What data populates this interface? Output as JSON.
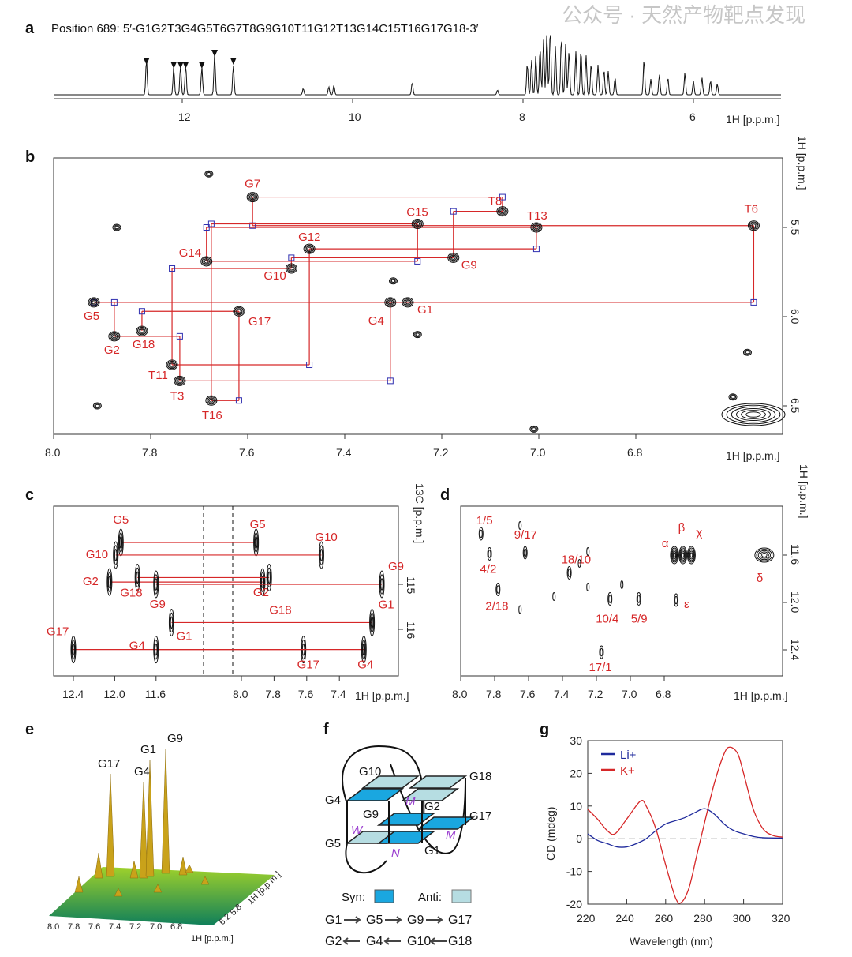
{
  "panels": {
    "a": {
      "label": "a",
      "title": "Position 689: 5′-G1G2T3G4G5T6G7T8G9G10T11G12T13G14C15T16G17G18-3′",
      "xticks": [
        "12",
        "10",
        "8",
        "6"
      ],
      "xlabel": "1H [p.p.m.]",
      "marked_peaks_ppm": [
        12.42,
        12.1,
        12.02,
        11.96,
        11.77,
        11.62,
        11.4
      ]
    },
    "b": {
      "label": "b",
      "xlabel": "1H [p.p.m.]",
      "ylabel": "1H [p.p.m.]",
      "xticks": [
        "8.0",
        "7.8",
        "7.6",
        "7.4",
        "7.2",
        "7.0",
        "6.8"
      ],
      "yticks": [
        "5.5",
        "6.0",
        "6.5"
      ],
      "assignments": [
        {
          "name": "G7",
          "h": 7.59,
          "y": 5.33
        },
        {
          "name": "C15",
          "h": 7.25,
          "y": 5.48
        },
        {
          "name": "T8",
          "h": 7.075,
          "y": 5.41
        },
        {
          "name": "T13",
          "h": 7.005,
          "y": 5.5
        },
        {
          "name": "T6",
          "h": 6.557,
          "y": 5.49
        },
        {
          "name": "G12",
          "h": 7.473,
          "y": 5.62
        },
        {
          "name": "G14",
          "h": 7.685,
          "y": 5.69
        },
        {
          "name": "G10",
          "h": 7.51,
          "y": 5.73
        },
        {
          "name": "G9",
          "h": 7.176,
          "y": 5.67
        },
        {
          "name": "G5",
          "h": 7.917,
          "y": 5.92
        },
        {
          "name": "G1",
          "h": 7.27,
          "y": 5.92
        },
        {
          "name": "G4",
          "h": 7.306,
          "y": 5.92
        },
        {
          "name": "G17",
          "h": 7.618,
          "y": 5.97
        },
        {
          "name": "G2",
          "h": 7.875,
          "y": 6.11
        },
        {
          "name": "G18",
          "h": 7.818,
          "y": 6.08
        },
        {
          "name": "T11",
          "h": 7.756,
          "y": 6.27
        },
        {
          "name": "T3",
          "h": 7.74,
          "y": 6.36
        },
        {
          "name": "T16",
          "h": 7.675,
          "y": 6.47
        }
      ]
    },
    "c": {
      "label": "c",
      "xlabel": "1H [p.p.m.]",
      "ylabel": "13C [p.p.m.]",
      "xticks_left": [
        "12.4",
        "12.0",
        "11.6"
      ],
      "xticks_right": [
        "8.0",
        "7.8",
        "7.6",
        "7.4"
      ],
      "yticks": [
        "115",
        "116"
      ],
      "pairs": [
        {
          "name": "G5",
          "h1": 11.94,
          "h8": 7.91,
          "c": 114.07
        },
        {
          "name": "G10",
          "h1": 11.99,
          "h8": 7.51,
          "c": 114.35
        },
        {
          "name": "G2",
          "h1": 12.05,
          "h8": 7.87,
          "c": 114.95
        },
        {
          "name": "G18",
          "h1": 11.78,
          "h8": 7.83,
          "c": 114.85
        },
        {
          "name": "G9",
          "h1": 11.6,
          "h8": 7.14,
          "c": 115.0
        },
        {
          "name": "G1",
          "h1": 11.45,
          "h8": 7.2,
          "c": 115.85
        },
        {
          "name": "G17",
          "h1": 12.4,
          "h8": 7.62,
          "c": 116.45
        },
        {
          "name": "G4",
          "h1": 11.6,
          "h8": 7.25,
          "c": 116.45
        }
      ]
    },
    "d": {
      "label": "d",
      "xlabel": "1H [p.p.m.]",
      "ylabel": "1H [p.p.m.]",
      "xticks": [
        "8.0",
        "7.8",
        "7.6",
        "7.4",
        "7.2",
        "7.0",
        "6.8"
      ],
      "yticks": [
        "11.6",
        "12.0",
        "12.4"
      ],
      "peaks": [
        {
          "name": "1/5",
          "h": 7.88,
          "y": 11.42
        },
        {
          "name": "9/17",
          "h": 7.62,
          "y": 11.58
        },
        {
          "name": "18/10",
          "h": 7.36,
          "y": 11.75
        },
        {
          "name": "4/2",
          "h": 7.83,
          "y": 11.59
        },
        {
          "name": "2/18",
          "h": 7.78,
          "y": 11.89
        },
        {
          "name": "10/4",
          "h": 7.12,
          "y": 11.97
        },
        {
          "name": "5/9",
          "h": 6.95,
          "y": 11.97
        },
        {
          "name": "17/1",
          "h": 7.17,
          "y": 12.42
        },
        {
          "name": "α",
          "h": 6.74,
          "y": 11.6
        },
        {
          "name": "β",
          "h": 6.69,
          "y": 11.6
        },
        {
          "name": "χ",
          "h": 6.64,
          "y": 11.6
        },
        {
          "name": "ε",
          "h": 6.73,
          "y": 11.98
        },
        {
          "name": "δ",
          "h": 6.21,
          "y": 11.6
        }
      ]
    },
    "e": {
      "label": "e",
      "peaks": [
        "G17",
        "G4",
        "G1",
        "G9"
      ],
      "xticks": [
        "8.0",
        "7.8",
        "7.6",
        "7.4",
        "7.2",
        "7.0",
        "6.8"
      ],
      "yticks": [
        "6.2",
        "5.8"
      ],
      "xlabel": "1H [p.p.m.]",
      "ylabel": "1H [p.p.m.]"
    },
    "f": {
      "label": "f",
      "bases": [
        "G10",
        "G18",
        "G4",
        "G2",
        "G9",
        "G17",
        "G5",
        "G1"
      ],
      "loops": [
        "W",
        "M",
        "M",
        "N"
      ],
      "legend": {
        "syn": "Syn:",
        "anti": "Anti:"
      },
      "syn_color": "#1aa7e0",
      "anti_color": "#b6dde2",
      "row1": [
        "G1",
        "G5",
        "G9",
        "G17"
      ],
      "row2": [
        "G2",
        "G4",
        "G10",
        "G18"
      ]
    },
    "g": {
      "label": "g"
    }
  },
  "chart_data": {
    "type": "line",
    "xlabel": "Wavelength (nm)",
    "ylabel": "CD (mdeg)",
    "xlim": [
      220,
      320
    ],
    "ylim": [
      -20,
      30
    ],
    "xticks": [
      220,
      240,
      260,
      280,
      300,
      320
    ],
    "yticks": [
      -20,
      -10,
      0,
      10,
      20,
      30
    ],
    "legend_position": "top-left",
    "series": [
      {
        "name": "Li+",
        "color": "#1f2a9c",
        "x": [
          220,
          225,
          230,
          235,
          240,
          245,
          250,
          255,
          260,
          265,
          270,
          275,
          280,
          285,
          290,
          295,
          300,
          305,
          310,
          320
        ],
        "y": [
          1.5,
          -0.5,
          -1.5,
          -2.5,
          -2.5,
          -1.5,
          0,
          2.5,
          4.5,
          5.5,
          6.5,
          8,
          9.2,
          7.5,
          4.5,
          2.5,
          1.5,
          0.7,
          0.3,
          0.2
        ]
      },
      {
        "name": "K+",
        "color": "#d62728",
        "x": [
          220,
          225,
          230,
          234,
          240,
          247,
          250,
          255,
          260,
          265,
          268,
          272,
          276,
          280,
          285,
          290,
          293,
          297,
          300,
          305,
          310,
          315,
          320
        ],
        "y": [
          9,
          6,
          2.5,
          1.5,
          6,
          11.5,
          10,
          3,
          -8,
          -18,
          -19.5,
          -15,
          -5,
          5,
          17,
          26,
          28,
          26,
          20,
          9,
          3,
          1,
          0.5
        ]
      }
    ]
  },
  "watermark": "公众号 · 天然产物靶点发现"
}
